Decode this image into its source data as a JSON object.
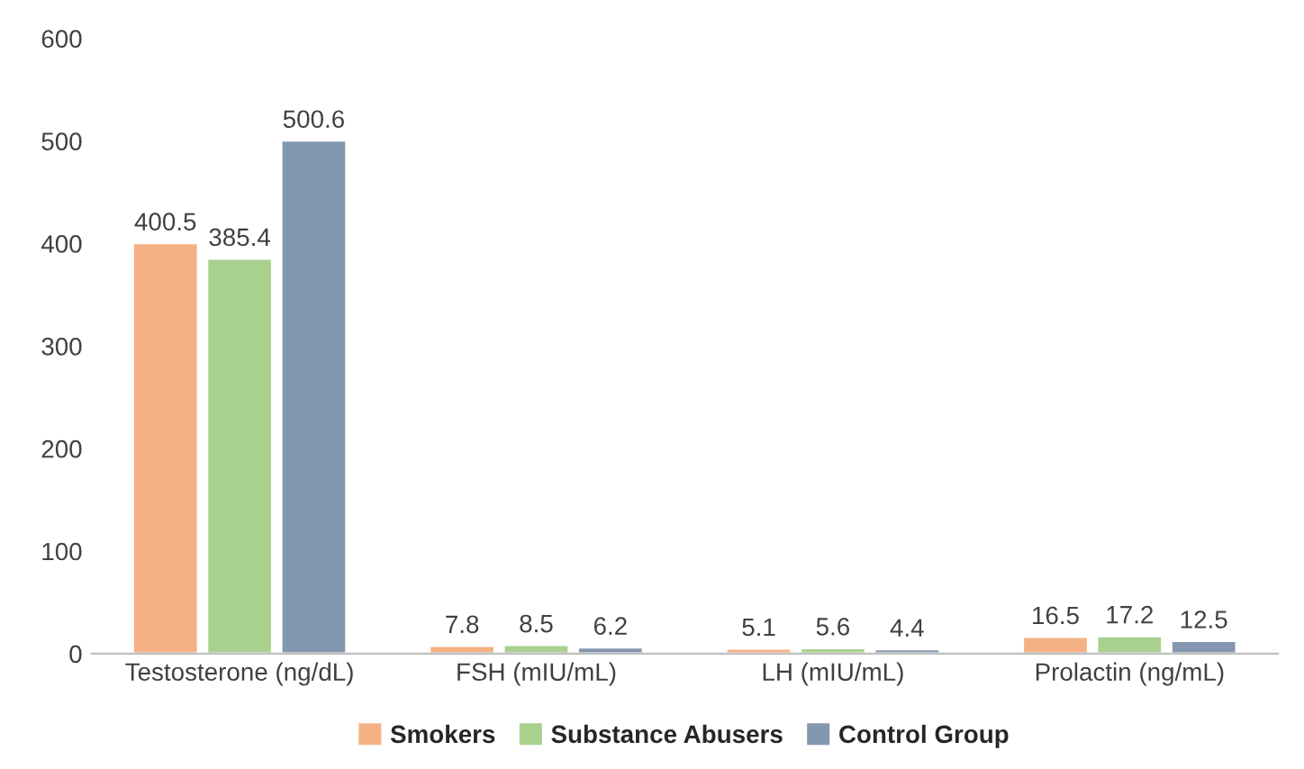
{
  "chart_data": {
    "type": "bar",
    "categories": [
      "Testosterone (ng/dL)",
      "FSH (mIU/mL)",
      "LH (mIU/mL)",
      "Prolactin (ng/mL)"
    ],
    "series": [
      {
        "name": "Smokers",
        "color": "#f4b183",
        "values": [
          400.5,
          7.8,
          5.1,
          16.5
        ]
      },
      {
        "name": "Substance Abusers",
        "color": "#a9d18e",
        "values": [
          385.4,
          8.5,
          5.6,
          17.2
        ]
      },
      {
        "name": "Control Group",
        "color": "#8497b0",
        "values": [
          500.6,
          6.2,
          4.4,
          12.5
        ]
      }
    ],
    "ylim": [
      0,
      600
    ],
    "yticks": [
      0,
      100,
      200,
      300,
      400,
      500,
      600
    ],
    "data_labels": true,
    "grid": false,
    "legend": "bottom"
  }
}
